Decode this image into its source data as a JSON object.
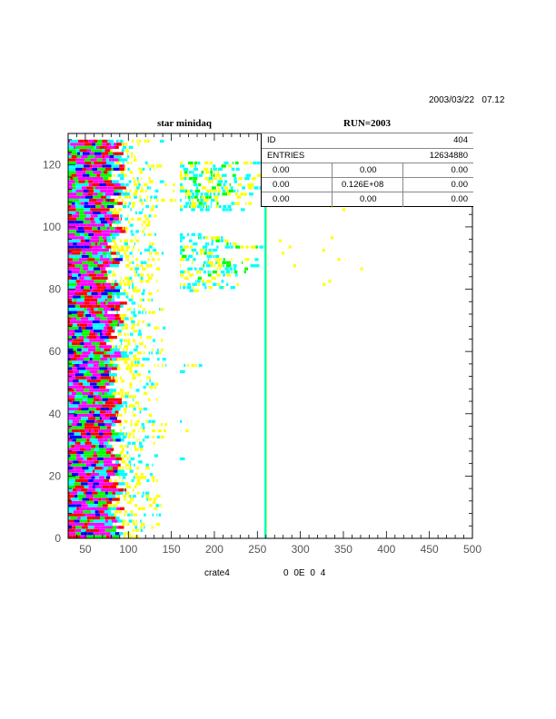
{
  "header": {
    "date": "2003/03/22",
    "time": "07.12",
    "title_left": "star minidaq",
    "title_right": "RUN=2003"
  },
  "footer": {
    "xlabel": "crate4",
    "xlabel_extra": "0 0E 0 4"
  },
  "stats": {
    "id_label": "ID",
    "id_value": "404",
    "entries_label": "ENTRIES",
    "entries_value": "12634880",
    "grid": [
      [
        "0.00",
        "0.00",
        "0.00"
      ],
      [
        "0.00",
        "0.126E+08",
        "0.00"
      ],
      [
        "0.00",
        "0.00",
        "0.00"
      ]
    ]
  },
  "chart_data": {
    "type": "heatmap",
    "title": "star minidaq",
    "xlabel": "crate4",
    "xlim": [
      30,
      500
    ],
    "ylim": [
      0,
      130
    ],
    "x_ticks": [
      50,
      100,
      150,
      200,
      250,
      300,
      350,
      400,
      450,
      500
    ],
    "y_ticks": [
      0,
      20,
      40,
      60,
      80,
      100,
      120
    ],
    "color_levels": [
      "#0000ff",
      "#ff00ff",
      "#ff0000",
      "#00ff00",
      "#00ffff",
      "#ffff00"
    ],
    "bands": [
      {
        "x_range": [
          30,
          95
        ],
        "color_order": [
          "blue",
          "magenta",
          "red",
          "green",
          "cyan"
        ]
      },
      {
        "x_range": [
          95,
          150
        ],
        "color_order": [
          "cyan",
          "yellow"
        ]
      },
      {
        "x_range": [
          160,
          260
        ],
        "color_order": [
          "cyan",
          "yellow"
        ]
      }
    ],
    "vertical_line_x": 258,
    "dense_rows_upper": [
      105,
      120
    ],
    "dense_rows_mid": [
      80,
      96
    ]
  }
}
